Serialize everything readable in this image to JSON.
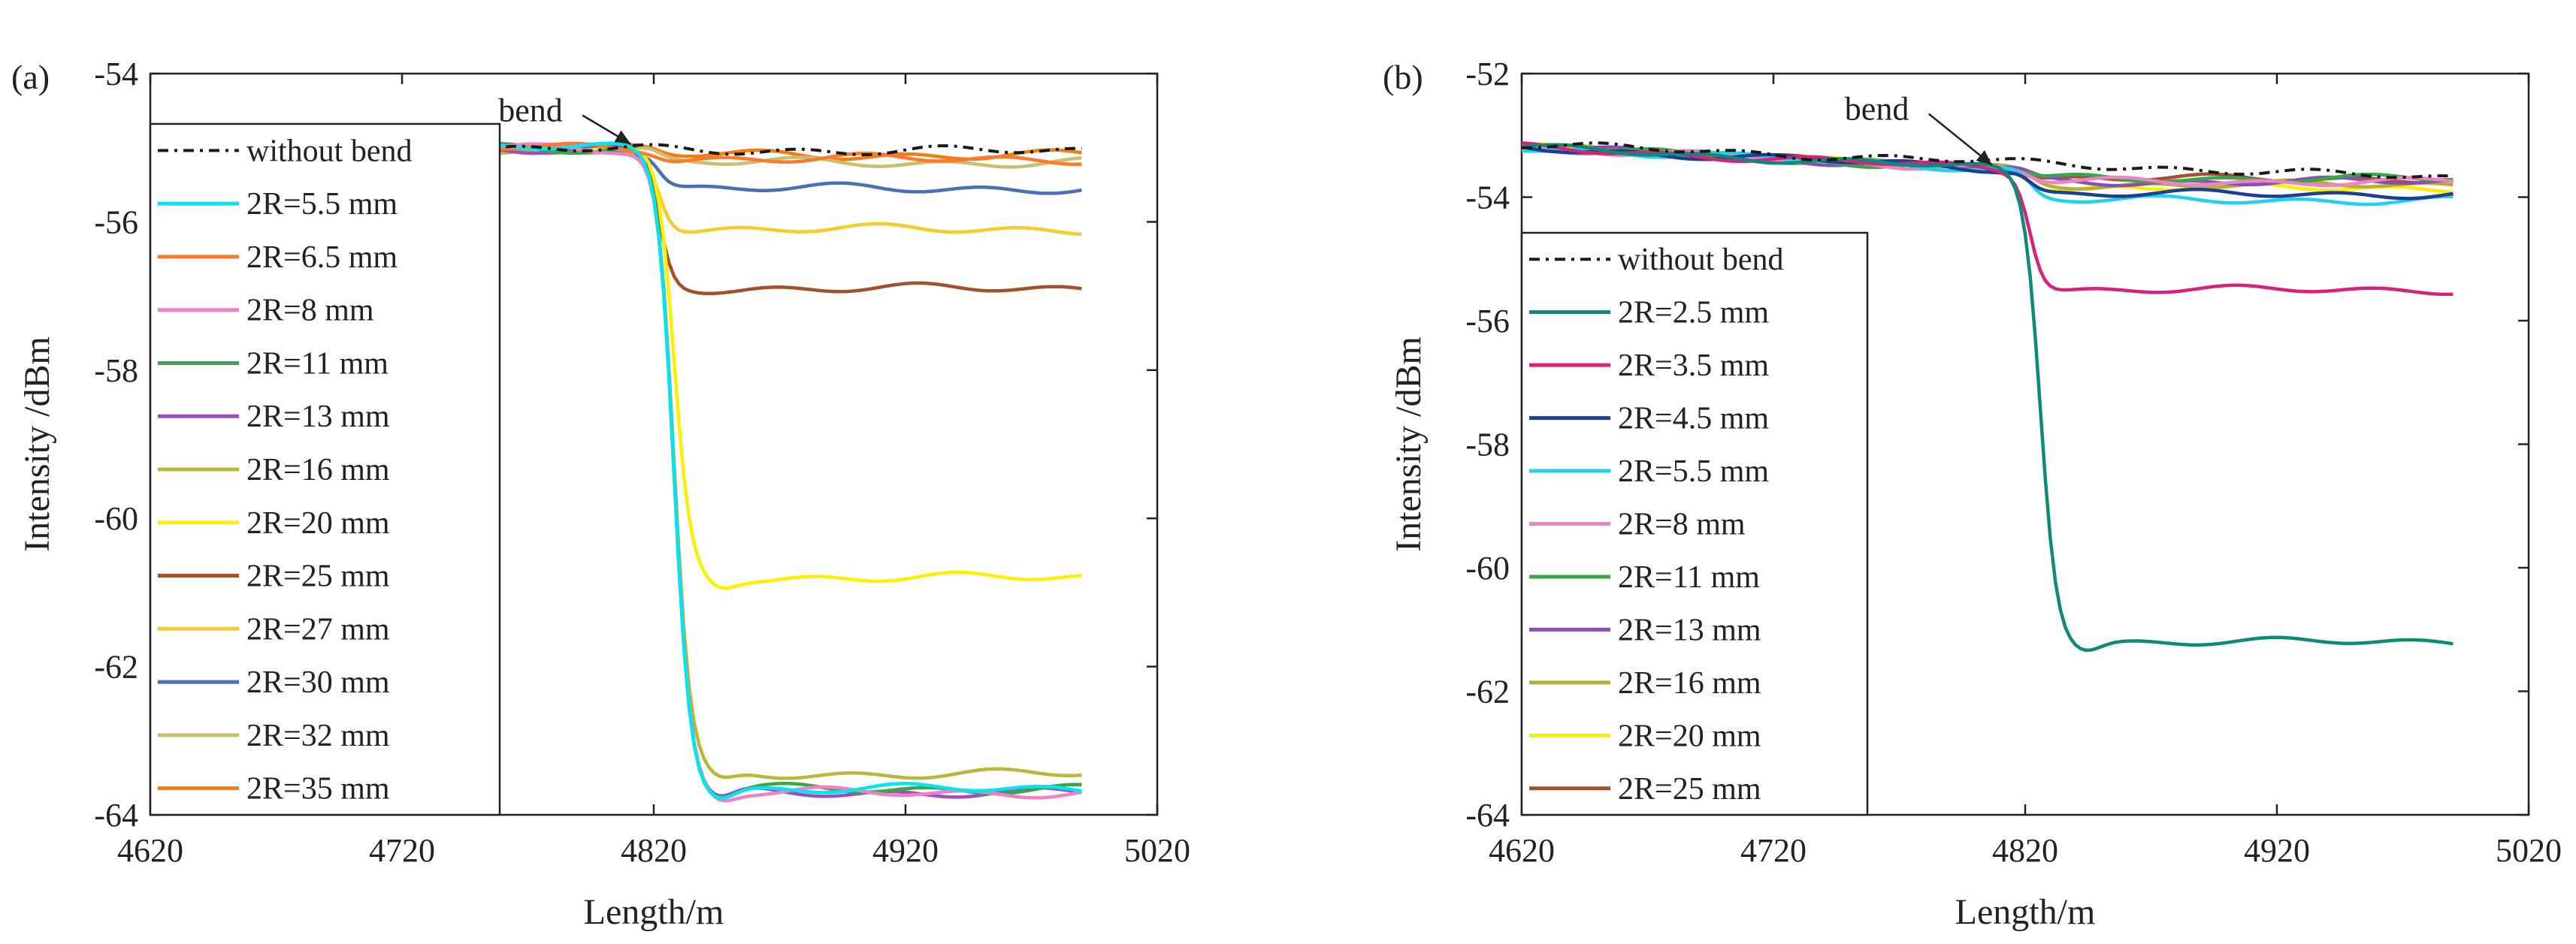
{
  "chart_data": [
    {
      "type": "line",
      "panel_label": "(a)",
      "xlabel": "Length/m",
      "ylabel": "Intensity /dBm",
      "xlim": [
        4620,
        5020
      ],
      "ylim": [
        -64,
        -54
      ],
      "xticks": [
        4620,
        4720,
        4820,
        4920,
        5020
      ],
      "yticks": [
        -54,
        -56,
        -58,
        -60,
        -62,
        -64
      ],
      "legend_position": "left",
      "annotation": {
        "text": "bend",
        "points_to_x": 4812,
        "points_to_y": -55.05
      },
      "series": [
        {
          "name": "without bend",
          "color": "#1a1a1a",
          "dashed": true,
          "start": -55.0,
          "final": -55.05
        },
        {
          "name": "2R=5.5 mm",
          "color": "#00e5ee",
          "start": -55.0,
          "final": -63.65
        },
        {
          "name": "2R=6.5 mm",
          "color": "#ff7a2a",
          "start": -55.0,
          "final": -55.15
        },
        {
          "name": "2R=8 mm",
          "color": "#ee82c8",
          "start": -55.0,
          "final": -63.7
        },
        {
          "name": "2R=11 mm",
          "color": "#3aa64a",
          "start": -55.0,
          "final": -63.65
        },
        {
          "name": "2R=13 mm",
          "color": "#9b4fc0",
          "start": -55.0,
          "final": -63.7
        },
        {
          "name": "2R=16 mm",
          "color": "#b9b83a",
          "start": -55.0,
          "final": -63.45
        },
        {
          "name": "2R=20 mm",
          "color": "#fff000",
          "start": -55.0,
          "final": -60.8
        },
        {
          "name": "2R=25 mm",
          "color": "#a0522d",
          "start": -55.0,
          "final": -56.9
        },
        {
          "name": "2R=27 mm",
          "color": "#f5cc2a",
          "start": -55.0,
          "final": -56.1
        },
        {
          "name": "2R=30 mm",
          "color": "#4a6fb5",
          "start": -55.0,
          "final": -55.55
        },
        {
          "name": "2R=32 mm",
          "color": "#c8c070",
          "start": -55.0,
          "final": -55.2
        },
        {
          "name": "2R=35 mm",
          "color": "#f07f10",
          "start": -55.0,
          "final": -55.1
        }
      ]
    },
    {
      "type": "line",
      "panel_label": "(b)",
      "xlabel": "Length/m",
      "ylabel": "Intensity /dBm",
      "xlim": [
        4620,
        5020
      ],
      "ylim": [
        -64,
        -52
      ],
      "xticks": [
        4620,
        4720,
        4820,
        4920,
        5020
      ],
      "yticks": [
        -52,
        -54,
        -56,
        -58,
        -60,
        -62,
        -64
      ],
      "legend_position": "left",
      "annotation": {
        "text": "bend",
        "points_to_x": 4808,
        "points_to_y": -53.6
      },
      "series": [
        {
          "name": "without bend",
          "color": "#1a1a1a",
          "dashed": true,
          "start": -53.15,
          "final": -53.7
        },
        {
          "name": "2R=2.5 mm",
          "color": "#0e8a78",
          "start": -53.2,
          "final": -61.2
        },
        {
          "name": "2R=3.5 mm",
          "color": "#d6217d",
          "start": -53.2,
          "final": -55.5
        },
        {
          "name": "2R=4.5 mm",
          "color": "#1c3f8f",
          "start": -53.2,
          "final": -53.95
        },
        {
          "name": "2R=5.5 mm",
          "color": "#22d0f0",
          "start": -53.2,
          "final": -54.05
        },
        {
          "name": "2R=8 mm",
          "color": "#ee82c8",
          "start": -53.2,
          "final": -53.75
        },
        {
          "name": "2R=11 mm",
          "color": "#3aa64a",
          "start": -53.2,
          "final": -53.7
        },
        {
          "name": "2R=13 mm",
          "color": "#8b4fb0",
          "start": -53.2,
          "final": -53.75
        },
        {
          "name": "2R=16 mm",
          "color": "#b5b030",
          "start": -53.2,
          "final": -53.8
        },
        {
          "name": "2R=20 mm",
          "color": "#ffee00",
          "start": -53.2,
          "final": -53.85
        },
        {
          "name": "2R=25 mm",
          "color": "#a0522d",
          "start": -53.2,
          "final": -53.7
        }
      ]
    }
  ]
}
